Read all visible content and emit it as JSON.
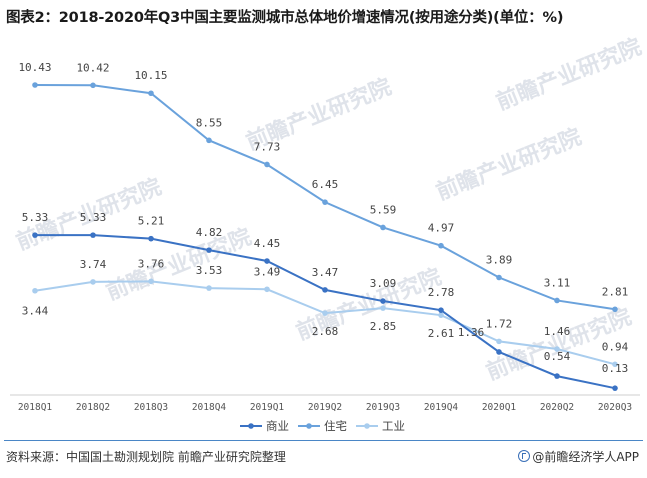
{
  "title": "图表2：2018-2020年Q3中国主要监测城市总体地价增速情况(按用途分类)(单位：%)",
  "watermark": "前瞻产业研究院",
  "footer": {
    "source": "资料来源：中国国土勘测规划院 前瞻产业研究院整理",
    "brand": "@前瞻经济学人APP"
  },
  "colors": {
    "商业": "#3a72c4",
    "住宅": "#6aa2dc",
    "工业": "#a9cdee",
    "axis": "#cfcfcf"
  },
  "chart_data": {
    "type": "line",
    "title": "2018-2020年Q3中国主要监测城市总体地价增速情况(按用途分类)",
    "xlabel": "",
    "ylabel": "%",
    "ylim": [
      0,
      11.5
    ],
    "categories": [
      "2018Q1",
      "2018Q2",
      "2018Q3",
      "2018Q4",
      "2019Q1",
      "2019Q2",
      "2019Q3",
      "2019Q4",
      "2020Q1",
      "2020Q2",
      "2020Q3"
    ],
    "series": [
      {
        "name": "商业",
        "values": [
          5.33,
          5.33,
          5.21,
          4.82,
          4.45,
          3.47,
          3.09,
          2.78,
          1.36,
          0.54,
          0.13
        ]
      },
      {
        "name": "住宅",
        "values": [
          10.43,
          10.42,
          10.15,
          8.55,
          7.73,
          6.45,
          5.59,
          4.97,
          3.89,
          3.11,
          2.81
        ]
      },
      {
        "name": "工业",
        "values": [
          3.44,
          3.74,
          3.76,
          3.53,
          3.49,
          2.68,
          2.85,
          2.61,
          1.72,
          1.46,
          0.94
        ]
      }
    ],
    "legend": [
      "商业",
      "住宅",
      "工业"
    ],
    "legend_position": "bottom"
  }
}
